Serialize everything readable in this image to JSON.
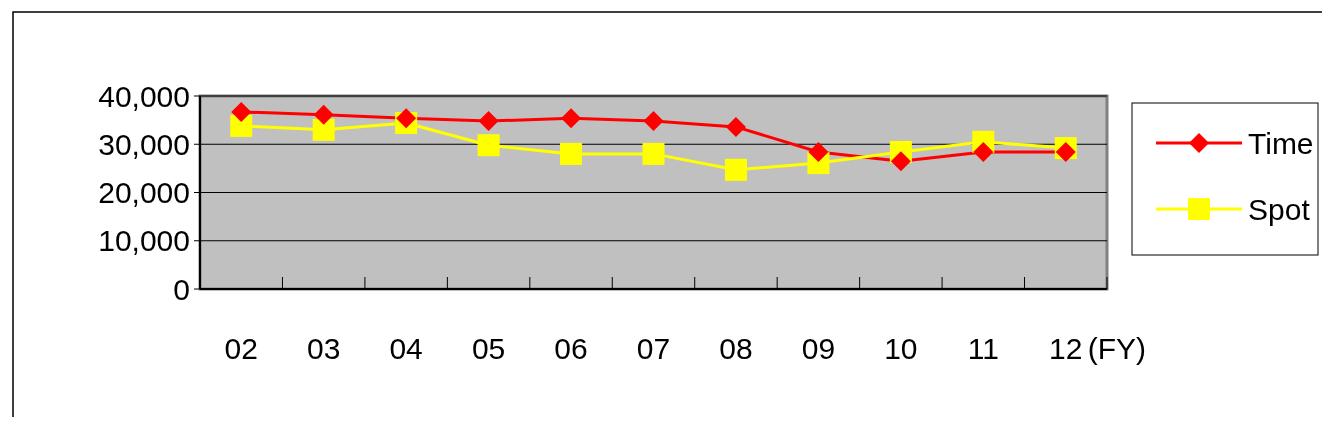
{
  "chart_data": {
    "type": "line",
    "xlabel": "(FY)",
    "categories": [
      "02",
      "03",
      "04",
      "05",
      "06",
      "07",
      "08",
      "09",
      "10",
      "11",
      "12"
    ],
    "series": [
      {
        "name": "Time",
        "color": "#ff0000",
        "marker": "diamond",
        "values": [
          36700,
          36100,
          35400,
          34800,
          35400,
          34800,
          33600,
          28400,
          26500,
          28400,
          28400
        ]
      },
      {
        "name": "Spot",
        "color": "#ffff00",
        "marker": "square",
        "values": [
          33800,
          33000,
          34400,
          29800,
          28000,
          28000,
          24700,
          26100,
          28400,
          30500,
          29200
        ]
      }
    ],
    "ylim": [
      0,
      40000
    ],
    "yticks": [
      0,
      {
        "value": 10000,
        "label": "10,000"
      },
      {
        "value": 20000,
        "label": "20,000"
      },
      {
        "value": 30000,
        "label": "30,000"
      },
      {
        "value": 40000,
        "label": "40,000"
      }
    ],
    "grid": "y",
    "legend": "right"
  }
}
